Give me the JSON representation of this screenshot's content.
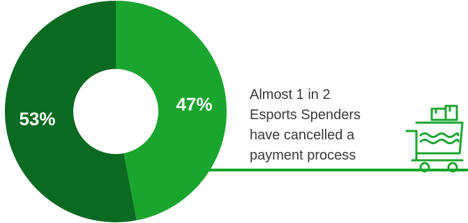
{
  "chart_data": {
    "type": "pie",
    "title": "",
    "slices": [
      {
        "label": "47%",
        "value": 47,
        "color": "#1aa52f"
      },
      {
        "label": "53%",
        "value": 53,
        "color": "#0b6a21"
      }
    ],
    "hole_color": "#ffffff"
  },
  "caption": {
    "lines": [
      "Almost 1 in 2",
      "Esports Spenders",
      "have cancelled a",
      "payment process"
    ]
  },
  "icon": {
    "name": "shopping-cart-icon",
    "color": "#1aa52f"
  }
}
